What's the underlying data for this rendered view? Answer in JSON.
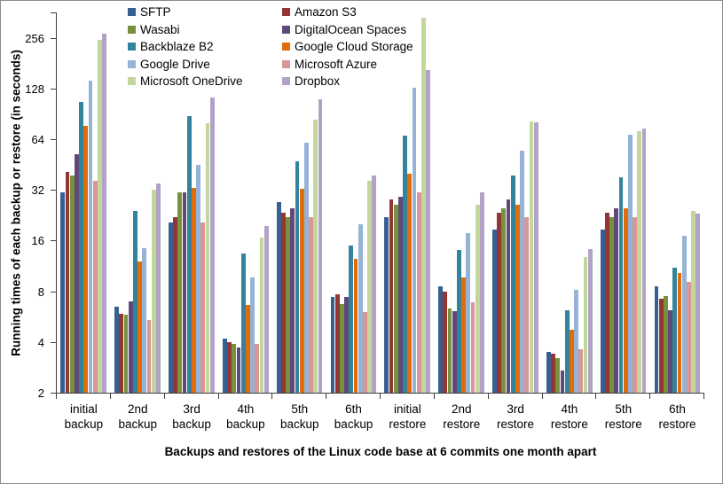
{
  "chart_data": {
    "type": "bar",
    "title": "",
    "xlabel": "Backups and restores of the Linux code base at 6 commits one month apart",
    "ylabel": "Running times of each backup or restore (in seconds)",
    "y_scale": "log2",
    "y_ticks": [
      2,
      4,
      8,
      16,
      32,
      64,
      128,
      256
    ],
    "ylim": [
      2,
      360
    ],
    "grid": false,
    "legend_position": "top-center-two-columns",
    "categories": [
      "initial backup",
      "2nd backup",
      "3rd backup",
      "4th backup",
      "5th backup",
      "6th backup",
      "initial restore",
      "2nd restore",
      "3rd restore",
      "4th restore",
      "5th restore",
      "6th restore"
    ],
    "series": [
      {
        "name": "SFTP",
        "color": "#376092",
        "values": [
          31,
          6.5,
          20.5,
          4.2,
          27,
          7.4,
          22,
          8.6,
          18.5,
          3.5,
          18.5,
          8.6
        ]
      },
      {
        "name": "Amazon S3",
        "color": "#943634",
        "values": [
          41,
          5.9,
          22,
          4.0,
          23.5,
          7.7,
          28,
          8.0,
          23.5,
          3.4,
          23.5,
          7.2
        ]
      },
      {
        "name": "Wasabi",
        "color": "#76923C",
        "values": [
          39,
          5.8,
          31,
          3.9,
          22,
          6.7,
          26,
          6.3,
          25,
          3.2,
          22,
          7.5
        ]
      },
      {
        "name": "DigitalOcean Spaces",
        "color": "#60497A",
        "values": [
          52,
          7.0,
          31,
          3.7,
          25,
          7.4,
          29,
          6.1,
          28,
          2.7,
          25,
          6.2
        ]
      },
      {
        "name": "Backblaze B2",
        "color": "#31849B",
        "values": [
          107,
          24,
          88,
          13.4,
          47,
          15,
          67,
          14,
          39,
          6.2,
          38,
          11.1
        ]
      },
      {
        "name": "Google Cloud Storage",
        "color": "#E36C0A",
        "values": [
          77,
          12,
          33,
          6.6,
          32.5,
          12.5,
          40,
          9.7,
          26,
          4.7,
          25,
          10.3
        ]
      },
      {
        "name": "Google Drive",
        "color": "#95B3D7",
        "values": [
          142,
          14.5,
          45,
          9.7,
          61,
          20,
          130,
          17.7,
          55,
          8.2,
          68,
          17
        ]
      },
      {
        "name": "Microsoft Azure",
        "color": "#D99694",
        "values": [
          36,
          5.4,
          20.5,
          3.9,
          22,
          6.0,
          31,
          6.9,
          22,
          3.6,
          22,
          9.1
        ]
      },
      {
        "name": "Microsoft OneDrive",
        "color": "#C3D69B",
        "values": [
          250,
          32,
          80,
          16.7,
          84,
          36,
          335,
          26,
          82,
          12.8,
          71,
          24
        ]
      },
      {
        "name": "Dropbox",
        "color": "#B2A2C7",
        "values": [
          270,
          35,
          113,
          19.4,
          110,
          39,
          165,
          31,
          81,
          14.2,
          74,
          23
        ]
      }
    ]
  },
  "colors": {
    "axis": "#3f3f3f",
    "text": "#000000",
    "background": "#ffffff",
    "border": "#8c8c8c"
  }
}
